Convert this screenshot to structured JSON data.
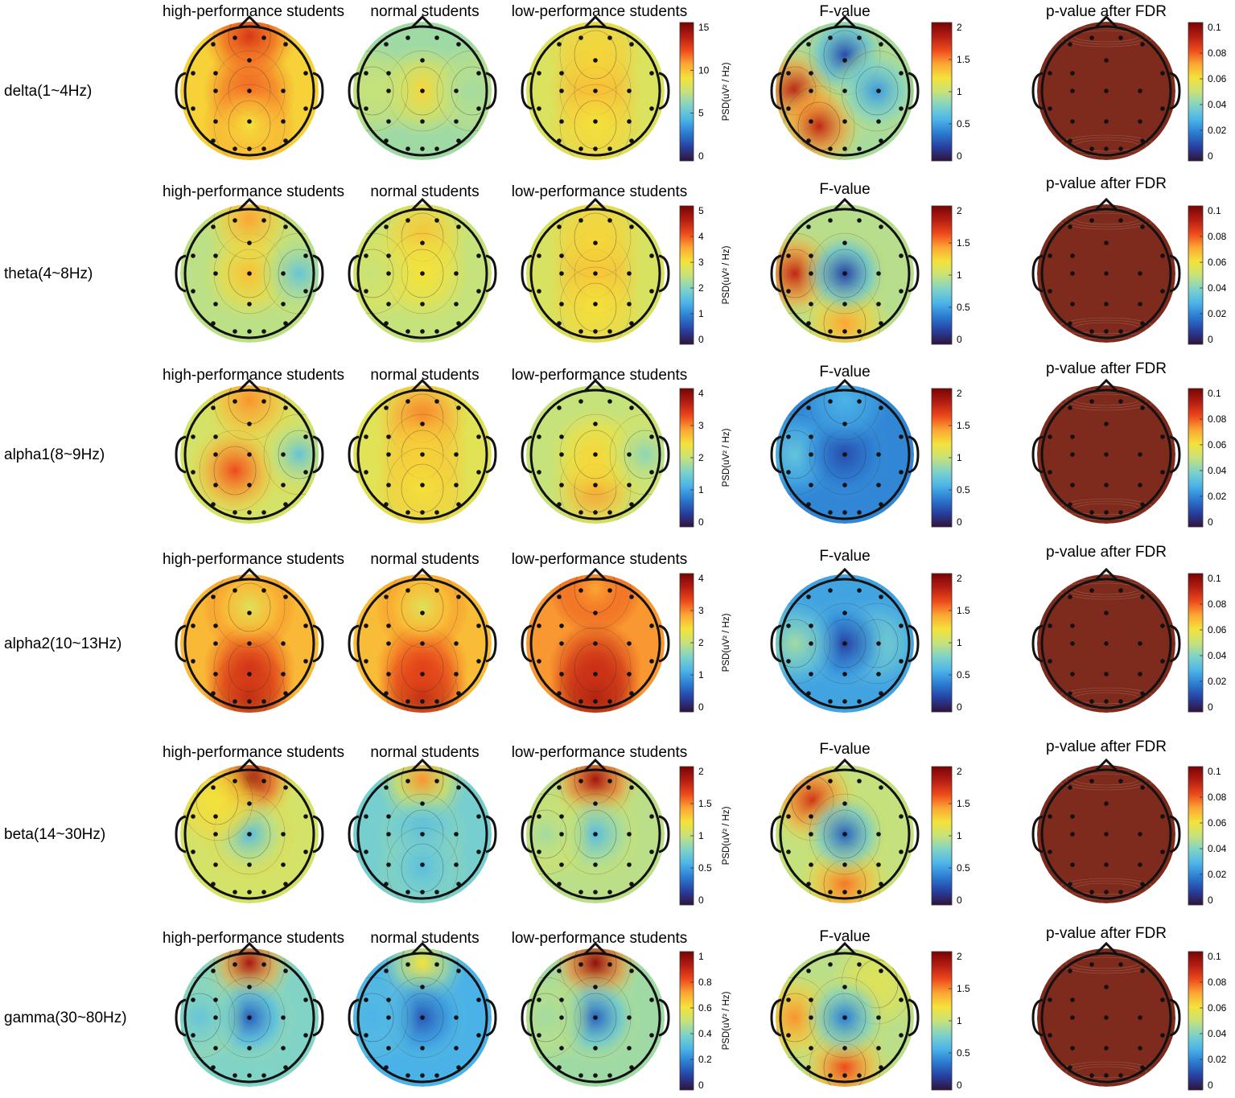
{
  "figure": {
    "column_titles": {
      "high": "high-performance students",
      "normal": "normal students",
      "low": "low-performance students",
      "f": "F-value",
      "p": "p-value after FDR"
    },
    "psd_unit_label": "PSD(uV² / Hz)",
    "colormap": [
      "#30123b",
      "#2740a0",
      "#2b7bd1",
      "#4cb5e8",
      "#7fd3c8",
      "#c7e27a",
      "#f4e23a",
      "#fca634",
      "#ed4a1b",
      "#b41d12",
      "#7a0403"
    ],
    "p_map_color": "#7e2a1c"
  },
  "chart_data": [
    {
      "type": "heatmap",
      "band": "delta(1~4Hz)",
      "psd_colorbar": {
        "ticks": [
          "15",
          "10",
          "5",
          "0"
        ],
        "range": [
          0,
          16
        ]
      },
      "f_colorbar": {
        "ticks": [
          "2",
          "1.5",
          "1",
          "0.5",
          "0"
        ],
        "range": [
          0,
          2.1
        ]
      },
      "p_colorbar": {
        "ticks": [
          "0.1",
          "0.08",
          "0.06",
          "0.04",
          "0.02",
          "0"
        ],
        "range": [
          0,
          0.105
        ]
      },
      "note": "topographic scalp maps; colour level per map, 0-1 of colorbar",
      "maps": {
        "high": [
          {
            "loc": "frontal-pole",
            "level": 0.84
          },
          {
            "loc": "center",
            "level": 0.78
          },
          {
            "loc": "posterior",
            "level": 0.6
          }
        ],
        "normal": [
          {
            "loc": "center",
            "level": 0.62
          },
          {
            "loc": "left-temporal",
            "level": 0.5
          },
          {
            "loc": "right-temporal",
            "level": 0.45
          }
        ],
        "low": [
          {
            "loc": "center",
            "level": 0.7
          },
          {
            "loc": "frontal",
            "level": 0.62
          },
          {
            "loc": "posterior",
            "level": 0.6
          }
        ],
        "f": [
          {
            "loc": "left-temporal",
            "level": 0.9
          },
          {
            "loc": "left-posterior",
            "level": 0.88
          },
          {
            "loc": "frontal",
            "level": 0.12
          },
          {
            "loc": "right-central",
            "level": 0.25
          }
        ]
      }
    },
    {
      "type": "heatmap",
      "band": "theta(4~8Hz)",
      "psd_colorbar": {
        "ticks": [
          "5",
          "4",
          "3",
          "2",
          "1",
          "0"
        ],
        "range": [
          0,
          5.3
        ]
      },
      "f_colorbar": {
        "ticks": [
          "2",
          "1.5",
          "1",
          "0.5",
          "0"
        ],
        "range": [
          0,
          2.1
        ]
      },
      "p_colorbar": {
        "ticks": [
          "0.1",
          "0.08",
          "0.06",
          "0.04",
          "0.02",
          "0"
        ],
        "range": [
          0,
          0.105
        ]
      },
      "note": "topographic scalp maps; colour level per map, 0-1 of colorbar",
      "maps": {
        "high": [
          {
            "loc": "center",
            "level": 0.66
          },
          {
            "loc": "frontal-pole",
            "level": 0.7
          },
          {
            "loc": "right-temporal",
            "level": 0.35
          }
        ],
        "normal": [
          {
            "loc": "frontal",
            "level": 0.66
          },
          {
            "loc": "center",
            "level": 0.6
          },
          {
            "loc": "left-temporal",
            "level": 0.5
          }
        ],
        "low": [
          {
            "loc": "center",
            "level": 0.68
          },
          {
            "loc": "frontal",
            "level": 0.62
          },
          {
            "loc": "posterior",
            "level": 0.6
          }
        ],
        "f": [
          {
            "loc": "left-temporal",
            "level": 0.88
          },
          {
            "loc": "occipital",
            "level": 0.7
          },
          {
            "loc": "center",
            "level": 0.1
          }
        ]
      }
    },
    {
      "type": "heatmap",
      "band": "alpha1(8~9Hz)",
      "psd_colorbar": {
        "ticks": [
          "4",
          "3",
          "2",
          "1",
          "0"
        ],
        "range": [
          0,
          4.3
        ]
      },
      "f_colorbar": {
        "ticks": [
          "2",
          "1.5",
          "1",
          "0.5",
          "0"
        ],
        "range": [
          0,
          2.1
        ]
      },
      "p_colorbar": {
        "ticks": [
          "0.1",
          "0.08",
          "0.06",
          "0.04",
          "0.02",
          "0"
        ],
        "range": [
          0,
          0.105
        ]
      },
      "note": "topographic scalp maps; colour level per map, 0-1 of colorbar",
      "maps": {
        "high": [
          {
            "loc": "left-parietal",
            "level": 0.8
          },
          {
            "loc": "frontal-pole",
            "level": 0.72
          },
          {
            "loc": "right-temporal",
            "level": 0.35
          }
        ],
        "normal": [
          {
            "loc": "frontal",
            "level": 0.75
          },
          {
            "loc": "center",
            "level": 0.62
          },
          {
            "loc": "posterior",
            "level": 0.6
          }
        ],
        "low": [
          {
            "loc": "posterior",
            "level": 0.72
          },
          {
            "loc": "center",
            "level": 0.62
          },
          {
            "loc": "right-temporal",
            "level": 0.42
          }
        ],
        "f": [
          {
            "loc": "left-temporal",
            "level": 0.35
          },
          {
            "loc": "center",
            "level": 0.12
          },
          {
            "loc": "frontal-pole",
            "level": 0.3
          }
        ]
      }
    },
    {
      "type": "heatmap",
      "band": "alpha2(10~13Hz)",
      "psd_colorbar": {
        "ticks": [
          "4",
          "3",
          "2",
          "1",
          "0"
        ],
        "range": [
          0,
          4.3
        ]
      },
      "f_colorbar": {
        "ticks": [
          "2",
          "1.5",
          "1",
          "0.5",
          "0"
        ],
        "range": [
          0,
          2.1
        ]
      },
      "p_colorbar": {
        "ticks": [
          "0.1",
          "0.08",
          "0.06",
          "0.04",
          "0.02",
          "0"
        ],
        "range": [
          0,
          0.105
        ]
      },
      "note": "topographic scalp maps; colour level per map, 0-1 of colorbar",
      "maps": {
        "high": [
          {
            "loc": "occipital",
            "level": 0.96
          },
          {
            "loc": "parietal",
            "level": 0.85
          },
          {
            "loc": "frontal",
            "level": 0.55
          }
        ],
        "normal": [
          {
            "loc": "occipital",
            "level": 0.97
          },
          {
            "loc": "parietal",
            "level": 0.82
          },
          {
            "loc": "frontal",
            "level": 0.55
          }
        ],
        "low": [
          {
            "loc": "occipital",
            "level": 0.97
          },
          {
            "loc": "parietal",
            "level": 0.86
          },
          {
            "loc": "frontal-pole",
            "level": 0.7
          }
        ],
        "f": [
          {
            "loc": "right-central",
            "level": 0.4
          },
          {
            "loc": "center",
            "level": 0.1
          },
          {
            "loc": "left-temporal",
            "level": 0.45
          }
        ]
      }
    },
    {
      "type": "heatmap",
      "band": "beta(14~30Hz)",
      "psd_colorbar": {
        "ticks": [
          "2",
          "1.5",
          "1",
          "0.5",
          "0"
        ],
        "range": [
          0,
          2.1
        ]
      },
      "f_colorbar": {
        "ticks": [
          "2",
          "1.5",
          "1",
          "0.5",
          "0"
        ],
        "range": [
          0,
          2.1
        ]
      },
      "p_colorbar": {
        "ticks": [
          "0.1",
          "0.08",
          "0.06",
          "0.04",
          "0.02",
          "0"
        ],
        "range": [
          0,
          0.105
        ]
      },
      "note": "topographic scalp maps; colour level per map, 0-1 of colorbar",
      "maps": {
        "high": [
          {
            "loc": "frontal-pole",
            "level": 0.95
          },
          {
            "loc": "center",
            "level": 0.32
          },
          {
            "loc": "left-frontal",
            "level": 0.6
          }
        ],
        "normal": [
          {
            "loc": "frontal-pole",
            "level": 0.72
          },
          {
            "loc": "center",
            "level": 0.3
          },
          {
            "loc": "posterior",
            "level": 0.33
          }
        ],
        "low": [
          {
            "loc": "frontal-pole",
            "level": 0.93
          },
          {
            "loc": "center",
            "level": 0.32
          },
          {
            "loc": "left-temporal",
            "level": 0.45
          }
        ],
        "f": [
          {
            "loc": "left-frontal",
            "level": 0.85
          },
          {
            "loc": "occipital",
            "level": 0.75
          },
          {
            "loc": "center",
            "level": 0.15
          }
        ]
      }
    },
    {
      "type": "heatmap",
      "band": "gamma(30~80Hz)",
      "psd_colorbar": {
        "ticks": [
          "1",
          "0.8",
          "0.6",
          "0.4",
          "0.2",
          "0"
        ],
        "range": [
          0,
          1.05
        ]
      },
      "f_colorbar": {
        "ticks": [
          "2",
          "1.5",
          "1",
          "0.5",
          "0"
        ],
        "range": [
          0,
          2.1
        ]
      },
      "p_colorbar": {
        "ticks": [
          "0.1",
          "0.08",
          "0.06",
          "0.04",
          "0.02",
          "0"
        ],
        "range": [
          0,
          0.105
        ]
      },
      "note": "topographic scalp maps; colour level per map, 0-1 of colorbar",
      "maps": {
        "high": [
          {
            "loc": "frontal-pole",
            "level": 0.92
          },
          {
            "loc": "center",
            "level": 0.15
          },
          {
            "loc": "left-temporal",
            "level": 0.35
          }
        ],
        "normal": [
          {
            "loc": "frontal-pole",
            "level": 0.6
          },
          {
            "loc": "center",
            "level": 0.14
          },
          {
            "loc": "left-temporal",
            "level": 0.3
          }
        ],
        "low": [
          {
            "loc": "frontal-pole",
            "level": 0.96
          },
          {
            "loc": "center",
            "level": 0.16
          },
          {
            "loc": "left-temporal",
            "level": 0.45
          }
        ],
        "f": [
          {
            "loc": "left-temporal",
            "level": 0.72
          },
          {
            "loc": "right-frontal",
            "level": 0.55
          },
          {
            "loc": "occipital",
            "level": 0.8
          },
          {
            "loc": "center",
            "level": 0.2
          }
        ]
      }
    }
  ]
}
